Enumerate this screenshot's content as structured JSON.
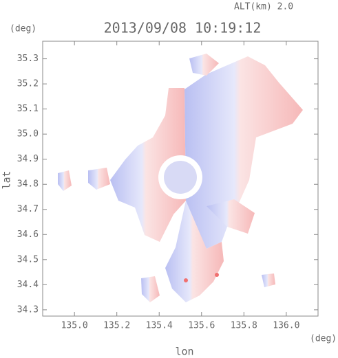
{
  "chart_data": {
    "type": "map",
    "title": "2013/09/08 10:19:12",
    "subtitle": "ALT(km)  2.0",
    "y_unit": "(deg)",
    "x_unit": "(deg)",
    "x_label": "lon",
    "y_label": "lat",
    "xlim": [
      134.85,
      136.15
    ],
    "ylim": [
      34.275,
      35.37
    ],
    "xticks": [
      {
        "value": 135,
        "label": "135.0"
      },
      135.2,
      135.4,
      135.6,
      135.8,
      {
        "value": 136,
        "label": "136.0"
      }
    ],
    "yticks": [
      34.3,
      34.4,
      34.5,
      34.6,
      34.7,
      34.8,
      34.9,
      {
        "value": 35,
        "label": "35.0"
      },
      35.1,
      35.2,
      35.3
    ],
    "grid": false
  }
}
